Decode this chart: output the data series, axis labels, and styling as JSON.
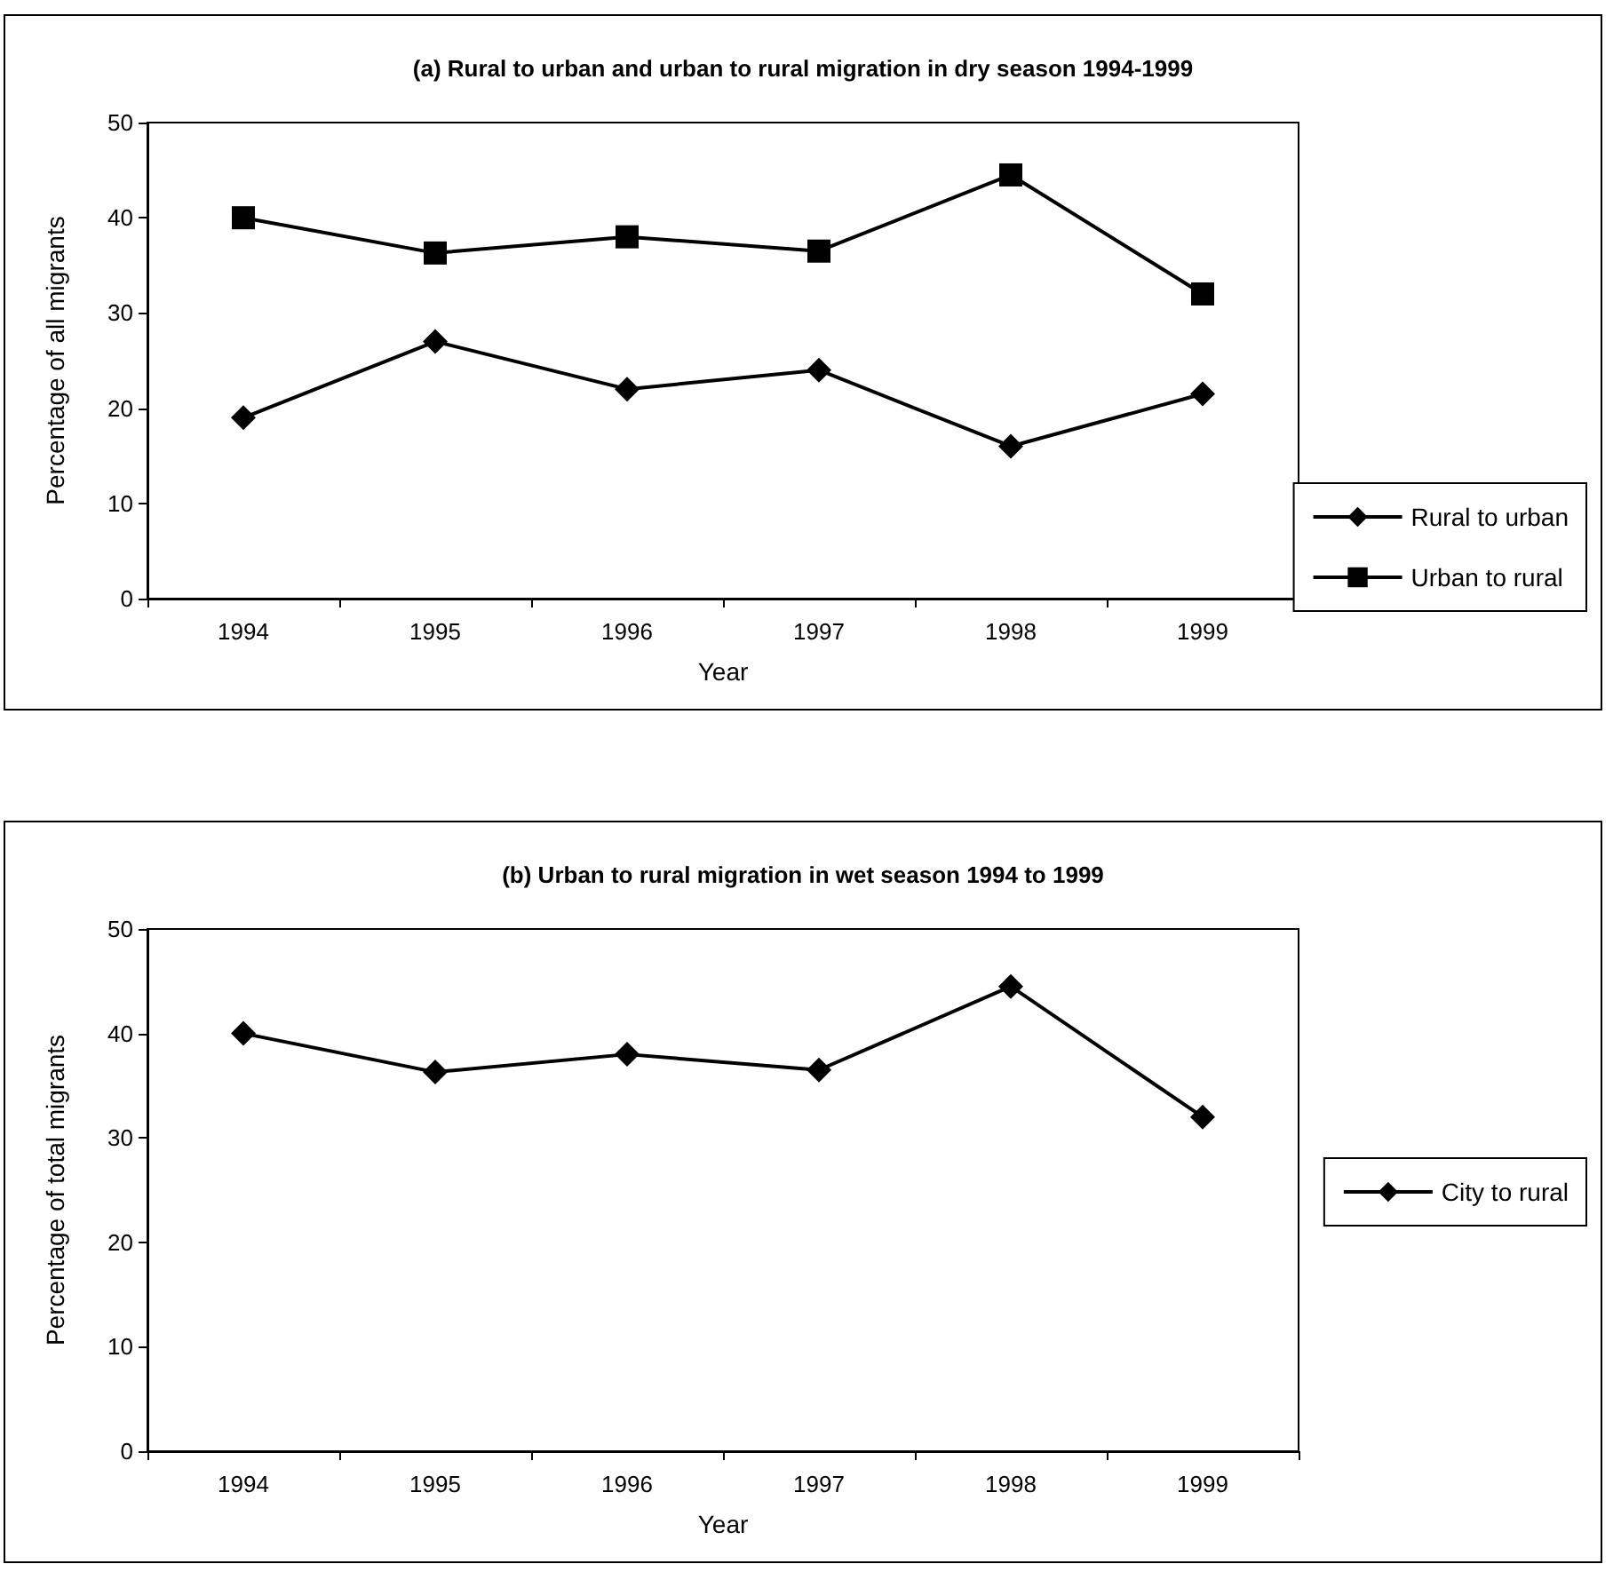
{
  "chart_data": [
    {
      "type": "line",
      "title": "(a) Rural to urban and urban to rural migration in dry season 1994-1999",
      "xlabel": "Year",
      "ylabel": "Percentage of all migrants",
      "categories": [
        "1994",
        "1995",
        "1996",
        "1997",
        "1998",
        "1999"
      ],
      "series": [
        {
          "name": "Rural to urban",
          "color": "#000000",
          "marker": "diamond",
          "values": [
            19,
            27,
            22,
            24,
            16,
            21.5
          ]
        },
        {
          "name": "Urban to rural",
          "color": "#000000",
          "marker": "square",
          "values": [
            40,
            36.3,
            38,
            36.5,
            44.5,
            32
          ]
        }
      ],
      "ylim": [
        0,
        50
      ],
      "yticks": [
        0,
        10,
        20,
        30,
        40,
        50
      ],
      "grid": false,
      "legend": "bottom right",
      "line_style": "solid"
    },
    {
      "type": "line",
      "title": "(b) Urban to rural migration in wet season 1994 to 1999",
      "xlabel": "Year",
      "ylabel": "Percentage of total migrants",
      "categories": [
        "1994",
        "1995",
        "1996",
        "1997",
        "1998",
        "1999"
      ],
      "series": [
        {
          "name": "City to rural",
          "color": "#000000",
          "marker": "diamond",
          "values": [
            40,
            36.3,
            38,
            36.5,
            44.5,
            32
          ]
        }
      ],
      "ylim": [
        0,
        50
      ],
      "yticks": [
        0,
        10,
        20,
        30,
        40,
        50
      ],
      "grid": false,
      "legend": "right",
      "line_style": "solid"
    }
  ]
}
